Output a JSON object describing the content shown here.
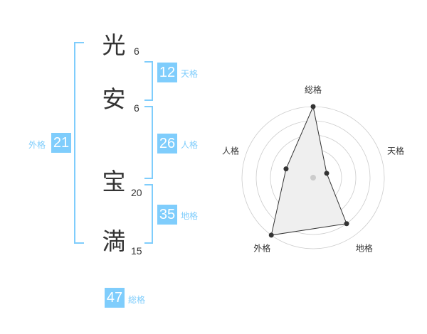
{
  "characters": [
    {
      "char": "光",
      "strokes": "6"
    },
    {
      "char": "安",
      "strokes": "6"
    },
    {
      "char": "宝",
      "strokes": "20"
    },
    {
      "char": "満",
      "strokes": "15"
    }
  ],
  "kaku": {
    "tenkaku": {
      "label": "天格",
      "value": "12"
    },
    "jinkaku": {
      "label": "人格",
      "value": "26"
    },
    "chikaku": {
      "label": "地格",
      "value": "35"
    },
    "gaikaku": {
      "label": "外格",
      "value": "21"
    },
    "soukaku": {
      "label": "総格",
      "value": "47"
    }
  },
  "chart_data": {
    "type": "radar",
    "axes": [
      "総格",
      "天格",
      "地格",
      "外格",
      "人格"
    ],
    "values": [
      5,
      1,
      4,
      5,
      2
    ],
    "range": [
      0,
      5
    ],
    "colors": {
      "fill": "#efefef",
      "line": "#333333",
      "grid": "#cccccc",
      "bracket": "#7fcdfc"
    }
  }
}
